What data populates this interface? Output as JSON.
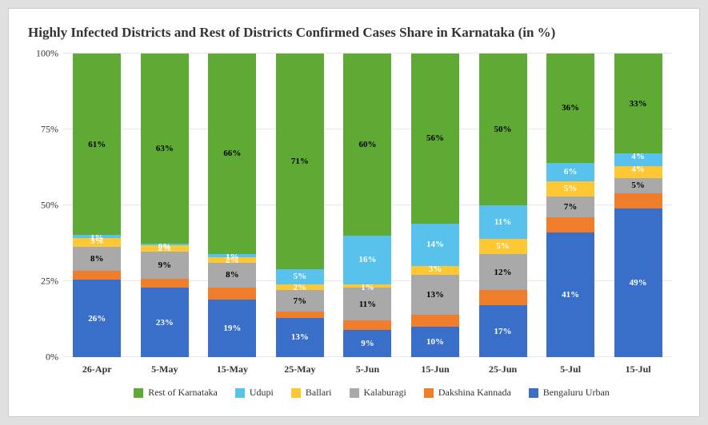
{
  "chart": {
    "type": "stacked-bar-100pct",
    "title": "Highly Infected Districts and Rest of Districts Confirmed Cases Share in Karnataka (in %)",
    "title_fontsize": 17,
    "title_font": "Georgia, serif",
    "background_color": "#ffffff",
    "outer_background": "#e0e0e0",
    "grid_color": "#e8e8e8",
    "ylim": [
      0,
      100
    ],
    "ytick_step": 25,
    "yticks": [
      "0%",
      "25%",
      "50%",
      "75%",
      "100%"
    ],
    "label_fontsize": 12,
    "seg_label_fontsize": 11,
    "categories": [
      "26-Apr",
      "5-May",
      "15-May",
      "25-May",
      "5-Jun",
      "15-Jun",
      "25-Jun",
      "5-Jul",
      "15-Jul"
    ],
    "series_order": [
      "bengaluru_urban",
      "dakshina_kannada",
      "kalaburagi",
      "ballari",
      "udupi",
      "rest"
    ],
    "series": {
      "rest": {
        "label": "Rest of Karnataka",
        "color": "#5faa35",
        "label_color": "#000000"
      },
      "udupi": {
        "label": "Udupi",
        "color": "#59c2ec",
        "label_color": "#ffffff"
      },
      "ballari": {
        "label": "Ballari",
        "color": "#fec834",
        "label_color": "#ffffff"
      },
      "kalaburagi": {
        "label": "Kalaburagi",
        "color": "#a9a9a9",
        "label_color": "#000000"
      },
      "dakshina_kannada": {
        "label": "Dakshina Kannada",
        "color": "#f07d2b",
        "label_color": "#000000"
      },
      "bengaluru_urban": {
        "label": "Bengaluru Urban",
        "color": "#3a6fc9",
        "label_color": "#ffffff"
      }
    },
    "data": [
      {
        "bengaluru_urban": 26,
        "dakshina_kannada": 3,
        "kalaburagi": 8,
        "ballari": 3,
        "udupi": 1,
        "rest": 61,
        "labels": {
          "bengaluru_urban": "26%",
          "kalaburagi": "8%",
          "ballari": "3%",
          "udupi": "1%",
          "rest": "61%"
        }
      },
      {
        "bengaluru_urban": 23,
        "dakshina_kannada": 3,
        "kalaburagi": 9,
        "ballari": 2,
        "udupi": 0.5,
        "rest": 63,
        "labels": {
          "bengaluru_urban": "23%",
          "kalaburagi": "9%",
          "ballari": "2%",
          "udupi": "0%",
          "rest": "63%"
        }
      },
      {
        "bengaluru_urban": 19,
        "dakshina_kannada": 4,
        "kalaburagi": 8,
        "ballari": 2,
        "udupi": 1,
        "rest": 66,
        "labels": {
          "bengaluru_urban": "19%",
          "kalaburagi": "8%",
          "ballari": "2%",
          "udupi": "1%",
          "rest": "66%"
        }
      },
      {
        "bengaluru_urban": 13,
        "dakshina_kannada": 2,
        "kalaburagi": 7,
        "ballari": 2,
        "udupi": 5,
        "rest": 71,
        "labels": {
          "bengaluru_urban": "13%",
          "kalaburagi": "7%",
          "ballari": "2%",
          "udupi": "5%",
          "rest": "71%"
        }
      },
      {
        "bengaluru_urban": 9,
        "dakshina_kannada": 3,
        "kalaburagi": 11,
        "ballari": 1,
        "udupi": 16,
        "rest": 60,
        "labels": {
          "bengaluru_urban": "9%",
          "kalaburagi": "11%",
          "ballari": "1%",
          "udupi": "16%",
          "rest": "60%"
        }
      },
      {
        "bengaluru_urban": 10,
        "dakshina_kannada": 4,
        "kalaburagi": 13,
        "ballari": 3,
        "udupi": 14,
        "rest": 56,
        "labels": {
          "bengaluru_urban": "10%",
          "kalaburagi": "13%",
          "ballari": "3%",
          "udupi": "14%",
          "rest": "56%"
        }
      },
      {
        "bengaluru_urban": 17,
        "dakshina_kannada": 5,
        "kalaburagi": 12,
        "ballari": 5,
        "udupi": 11,
        "rest": 50,
        "labels": {
          "bengaluru_urban": "17%",
          "kalaburagi": "12%",
          "ballari": "5%",
          "udupi": "11%",
          "rest": "50%"
        }
      },
      {
        "bengaluru_urban": 41,
        "dakshina_kannada": 5,
        "kalaburagi": 7,
        "ballari": 5,
        "udupi": 6,
        "rest": 36,
        "labels": {
          "bengaluru_urban": "41%",
          "kalaburagi": "7%",
          "ballari": "5%",
          "udupi": "6%",
          "rest": "36%"
        }
      },
      {
        "bengaluru_urban": 49,
        "dakshina_kannada": 5,
        "kalaburagi": 5,
        "ballari": 4,
        "udupi": 4,
        "rest": 33,
        "labels": {
          "bengaluru_urban": "49%",
          "kalaburagi": "5%",
          "ballari": "4%",
          "udupi": "4%",
          "rest": "33%"
        }
      }
    ]
  }
}
